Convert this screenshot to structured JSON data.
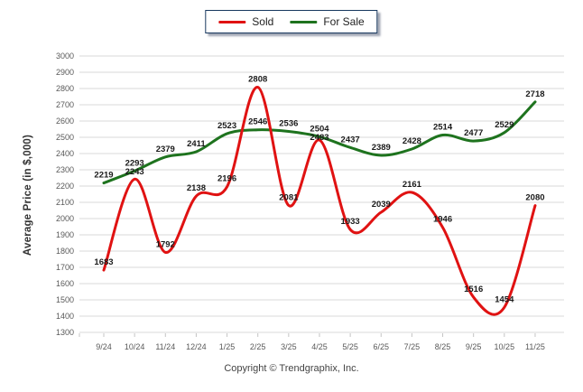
{
  "footer": "Copyright © Trendgraphix, Inc.",
  "chart_data": {
    "type": "line",
    "title": "",
    "xlabel": "",
    "ylabel": "Average Price (in $,000)",
    "categories": [
      "9/24",
      "10/24",
      "11/24",
      "12/24",
      "1/25",
      "2/25",
      "3/25",
      "4/25",
      "5/25",
      "6/25",
      "7/25",
      "8/25",
      "9/25",
      "10/25",
      "11/25"
    ],
    "series": [
      {
        "name": "Sold",
        "color": "#e01212",
        "values": [
          1683,
          2243,
          1792,
          2138,
          2196,
          2808,
          2081,
          2483,
          1933,
          2039,
          2161,
          1946,
          1516,
          1454,
          2080
        ]
      },
      {
        "name": "For Sale",
        "color": "#1e731e",
        "values": [
          2219,
          2293,
          2379,
          2411,
          2523,
          2546,
          2536,
          2504,
          2437,
          2389,
          2428,
          2514,
          2477,
          2529,
          2718
        ]
      }
    ],
    "ylim": [
      1300,
      3000
    ],
    "ytick_step": 100,
    "grid": "horizontal",
    "gridline_color": "#d9d9d9",
    "tick_label_color": "#595959",
    "value_label_color": "#1a1a1a",
    "legend_position": "top-center",
    "value_labels": true,
    "line_smoothing": "spline"
  }
}
